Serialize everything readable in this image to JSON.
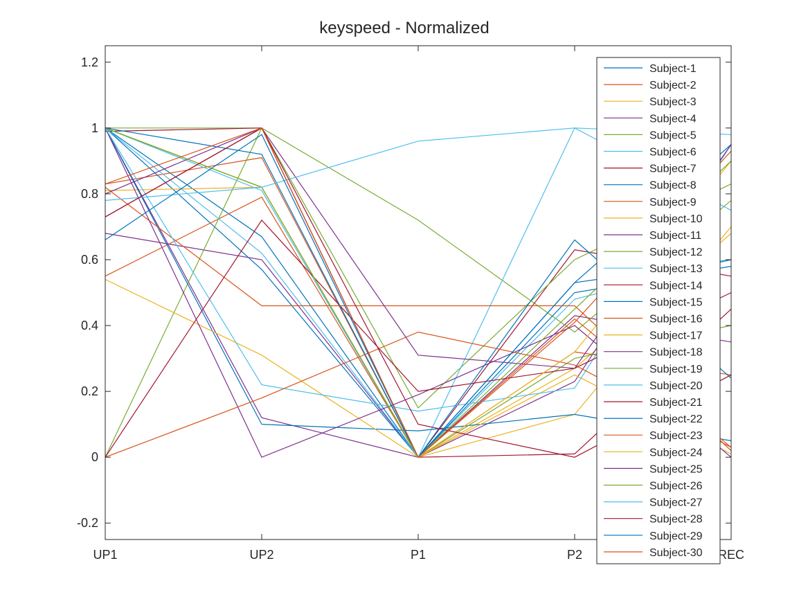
{
  "chart_data": {
    "type": "line",
    "title": "keyspeed - Normalized",
    "xlabel": "",
    "ylabel": "",
    "categories": [
      "UP1",
      "UP2",
      "P1",
      "P2",
      "REC"
    ],
    "ylim": [
      -0.25,
      1.25
    ],
    "yticks": [
      -0.2,
      0,
      0.2,
      0.4,
      0.6,
      0.8,
      1,
      1.2
    ],
    "ytick_labels": [
      "-0.2",
      "0",
      "0.2",
      "0.4",
      "0.6",
      "0.8",
      "1",
      "1.2"
    ],
    "grid": false,
    "legend_position": "top-right",
    "palette": [
      "#0072BD",
      "#D95319",
      "#EDB120",
      "#7E2F8E",
      "#77AC30",
      "#4DBEEE",
      "#A2142F"
    ],
    "series": [
      {
        "name": "Subject-1",
        "values": [
          1.0,
          0.67,
          0.0,
          0.53,
          0.95
        ]
      },
      {
        "name": "Subject-2",
        "values": [
          0.83,
          0.91,
          0.0,
          0.41,
          0.93
        ]
      },
      {
        "name": "Subject-3",
        "values": [
          1.0,
          0.82,
          0.0,
          0.27,
          0.68
        ]
      },
      {
        "name": "Subject-4",
        "values": [
          0.68,
          0.6,
          0.0,
          0.43,
          0.35
        ]
      },
      {
        "name": "Subject-5",
        "values": [
          1.0,
          1.0,
          0.72,
          0.38,
          0.78
        ]
      },
      {
        "name": "Subject-6",
        "values": [
          1.0,
          0.81,
          0.0,
          0.48,
          0.6
        ]
      },
      {
        "name": "Subject-7",
        "values": [
          0.99,
          1.0,
          0.0,
          0.63,
          0.55
        ]
      },
      {
        "name": "Subject-8",
        "values": [
          1.0,
          0.57,
          0.0,
          0.5,
          0.58
        ]
      },
      {
        "name": "Subject-9",
        "values": [
          0.55,
          0.79,
          0.0,
          0.32,
          0.25
        ]
      },
      {
        "name": "Subject-10",
        "values": [
          0.81,
          0.82,
          0.0,
          0.13,
          0.7
        ]
      },
      {
        "name": "Subject-11",
        "values": [
          1.0,
          0.12,
          0.0,
          0.23,
          0.95
        ]
      },
      {
        "name": "Subject-12",
        "values": [
          0.0,
          1.0,
          0.15,
          0.6,
          0.83
        ]
      },
      {
        "name": "Subject-13",
        "values": [
          1.0,
          0.62,
          0.0,
          1.0,
          0.75
        ]
      },
      {
        "name": "Subject-14",
        "values": [
          0.73,
          1.0,
          0.0,
          0.01,
          0.45
        ]
      },
      {
        "name": "Subject-15",
        "values": [
          1.0,
          0.1,
          0.08,
          0.13,
          0.05
        ]
      },
      {
        "name": "Subject-16",
        "values": [
          0.82,
          0.46,
          0.46,
          0.46,
          0.02
        ]
      },
      {
        "name": "Subject-17",
        "values": [
          0.54,
          0.31,
          0.0,
          0.25,
          0.01
        ]
      },
      {
        "name": "Subject-18",
        "values": [
          1.0,
          0.0,
          0.19,
          0.4,
          0.0
        ]
      },
      {
        "name": "Subject-19",
        "values": [
          1.0,
          0.82,
          0.0,
          0.3,
          0.4
        ]
      },
      {
        "name": "Subject-20",
        "values": [
          1.0,
          0.22,
          0.14,
          0.21,
          0.95
        ]
      },
      {
        "name": "Subject-21",
        "values": [
          0.0,
          0.72,
          0.2,
          0.27,
          0.5
        ]
      },
      {
        "name": "Subject-22",
        "values": [
          1.0,
          0.92,
          0.0,
          0.66,
          0.24
        ]
      },
      {
        "name": "Subject-23",
        "values": [
          0.0,
          0.18,
          0.38,
          0.28,
          0.03
        ]
      },
      {
        "name": "Subject-24",
        "values": [
          1.0,
          0.82,
          0.0,
          0.32,
          0.9
        ]
      },
      {
        "name": "Subject-25",
        "values": [
          0.8,
          1.0,
          0.31,
          0.27,
          0.95
        ]
      },
      {
        "name": "Subject-26",
        "values": [
          1.0,
          0.82,
          0.0,
          0.45,
          0.9
        ]
      },
      {
        "name": "Subject-27",
        "values": [
          0.78,
          0.82,
          0.96,
          1.0,
          0.98
        ]
      },
      {
        "name": "Subject-28",
        "values": [
          0.73,
          1.0,
          0.1,
          0.0,
          0.25
        ]
      },
      {
        "name": "Subject-29",
        "values": [
          0.66,
          0.98,
          0.0,
          0.53,
          0.6
        ]
      },
      {
        "name": "Subject-30",
        "values": [
          0.83,
          1.0,
          0.0,
          0.42,
          0.03
        ]
      }
    ]
  }
}
